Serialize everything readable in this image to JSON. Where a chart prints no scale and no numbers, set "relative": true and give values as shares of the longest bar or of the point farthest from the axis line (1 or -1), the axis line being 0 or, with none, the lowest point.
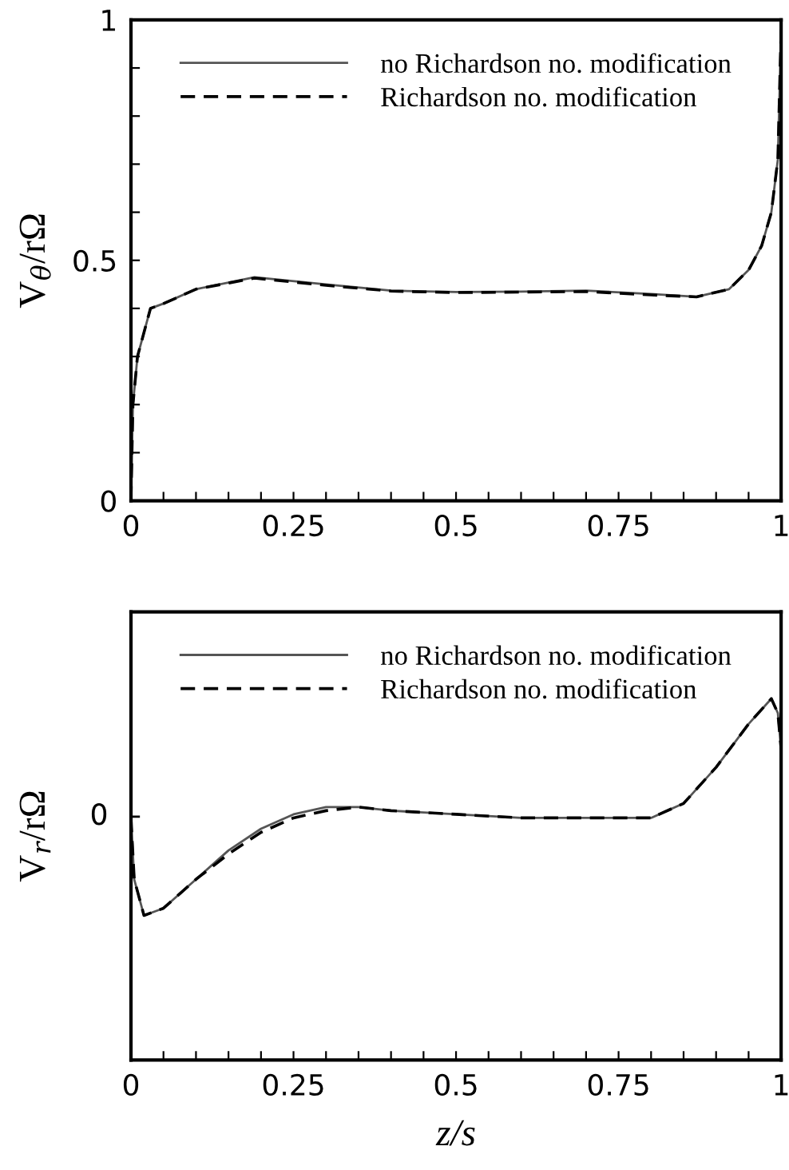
{
  "chart_data": [
    {
      "type": "line",
      "ylabel": "V$_{θ}$/rΩ",
      "legend": "top",
      "grid": false,
      "xlim": [
        0,
        1
      ],
      "ylim": [
        0,
        1
      ],
      "xticks": [
        0,
        {
          "value": 0.05,
          "label": null
        },
        {
          "value": 0.1,
          "label": null
        },
        {
          "value": 0.15,
          "label": null
        },
        {
          "value": 0.2,
          "label": null
        },
        0.25,
        {
          "value": 0.3,
          "label": null
        },
        {
          "value": 0.35,
          "label": null
        },
        {
          "value": 0.4,
          "label": null
        },
        {
          "value": 0.45,
          "label": null
        },
        0.5,
        {
          "value": 0.55,
          "label": null
        },
        {
          "value": 0.6,
          "label": null
        },
        {
          "value": 0.65,
          "label": null
        },
        {
          "value": 0.7,
          "label": null
        },
        0.75,
        {
          "value": 0.8,
          "label": null
        },
        {
          "value": 0.85,
          "label": null
        },
        {
          "value": 0.9,
          "label": null
        },
        {
          "value": 0.95,
          "label": null
        },
        1
      ],
      "yticks": [
        0,
        {
          "value": 0.1,
          "label": null
        },
        {
          "value": 0.2,
          "label": null
        },
        {
          "value": 0.3,
          "label": null
        },
        {
          "value": 0.4,
          "label": null
        },
        0.5,
        {
          "value": 0.6,
          "label": null
        },
        {
          "value": 0.7,
          "label": null
        },
        {
          "value": 0.8,
          "label": null
        },
        {
          "value": 0.9,
          "label": null
        },
        1
      ],
      "x": [
        0,
        0.003,
        0.01,
        0.03,
        0.05,
        0.1,
        0.19,
        0.3,
        0.4,
        0.5,
        0.6,
        0.7,
        0.8,
        0.87,
        0.92,
        0.95,
        0.97,
        0.985,
        0.995,
        1
      ],
      "series": [
        {
          "name": "no Richardson no. modification",
          "color": "#555555",
          "line_style": "solid",
          "values": [
            0,
            0.2,
            0.3,
            0.4,
            0.41,
            0.44,
            0.465,
            0.45,
            0.437,
            0.434,
            0.435,
            0.437,
            0.43,
            0.424,
            0.44,
            0.48,
            0.53,
            0.6,
            0.71,
            0.98
          ]
        },
        {
          "name": "Richardson no. modification",
          "color": "#000000",
          "line_style": "dashed",
          "values": [
            0,
            0.2,
            0.3,
            0.4,
            0.41,
            0.44,
            0.463,
            0.448,
            0.436,
            0.433,
            0.434,
            0.435,
            0.428,
            0.424,
            0.44,
            0.48,
            0.53,
            0.6,
            0.71,
            0.98
          ]
        }
      ]
    },
    {
      "type": "line",
      "ylabel": "V$_{r}$/rΩ",
      "xlabel": "z/s",
      "legend": "top",
      "grid": false,
      "relative": true,
      "annotations": [
        "0"
      ],
      "xlim": [
        0,
        1
      ],
      "xticks": [
        0,
        {
          "value": 0.05,
          "label": null
        },
        {
          "value": 0.1,
          "label": null
        },
        {
          "value": 0.15,
          "label": null
        },
        {
          "value": 0.2,
          "label": null
        },
        0.25,
        {
          "value": 0.3,
          "label": null
        },
        {
          "value": 0.35,
          "label": null
        },
        {
          "value": 0.4,
          "label": null
        },
        {
          "value": 0.45,
          "label": null
        },
        0.5,
        {
          "value": 0.55,
          "label": null
        },
        {
          "value": 0.6,
          "label": null
        },
        {
          "value": 0.65,
          "label": null
        },
        {
          "value": 0.7,
          "label": null
        },
        0.75,
        {
          "value": 0.8,
          "label": null
        },
        {
          "value": 0.85,
          "label": null
        },
        {
          "value": 0.9,
          "label": null
        },
        {
          "value": 0.95,
          "label": null
        },
        1
      ],
      "x": [
        0,
        0.005,
        0.02,
        0.05,
        0.1,
        0.15,
        0.2,
        0.25,
        0.3,
        0.35,
        0.4,
        0.5,
        0.6,
        0.7,
        0.8,
        0.85,
        0.9,
        0.95,
        0.985,
        0.995,
        1
      ],
      "series": [
        {
          "name": "no Richardson no. modification",
          "color": "#555555",
          "line_style": "solid",
          "values": [
            0.67,
            0.5,
            0.4,
            0.42,
            0.5,
            0.58,
            0.64,
            0.68,
            0.7,
            0.7,
            0.69,
            0.68,
            0.67,
            0.67,
            0.67,
            0.71,
            0.81,
            0.93,
            1.0,
            0.96,
            0.86
          ]
        },
        {
          "name": "Richardson no. modification",
          "color": "#000000",
          "line_style": "dashed",
          "values": [
            0.67,
            0.5,
            0.4,
            0.42,
            0.5,
            0.57,
            0.63,
            0.67,
            0.69,
            0.7,
            0.69,
            0.68,
            0.67,
            0.67,
            0.67,
            0.71,
            0.81,
            0.93,
            1.0,
            0.96,
            0.86
          ]
        }
      ]
    }
  ]
}
